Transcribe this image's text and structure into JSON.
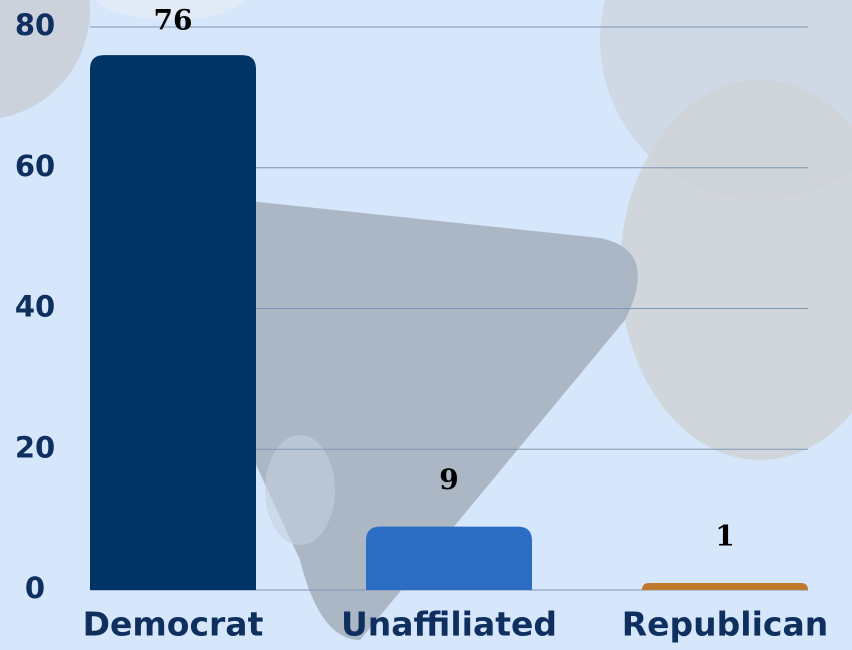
{
  "chart_data": {
    "type": "bar",
    "categories": [
      "Democrat",
      "Unaffiliated",
      "Republican"
    ],
    "values": [
      76,
      9,
      1
    ],
    "colors": [
      "#003366",
      "#2b6dc3",
      "#c0792f"
    ],
    "ylim": [
      0,
      80
    ],
    "yticks": [
      0,
      20,
      40,
      60,
      80
    ],
    "grid": true
  }
}
